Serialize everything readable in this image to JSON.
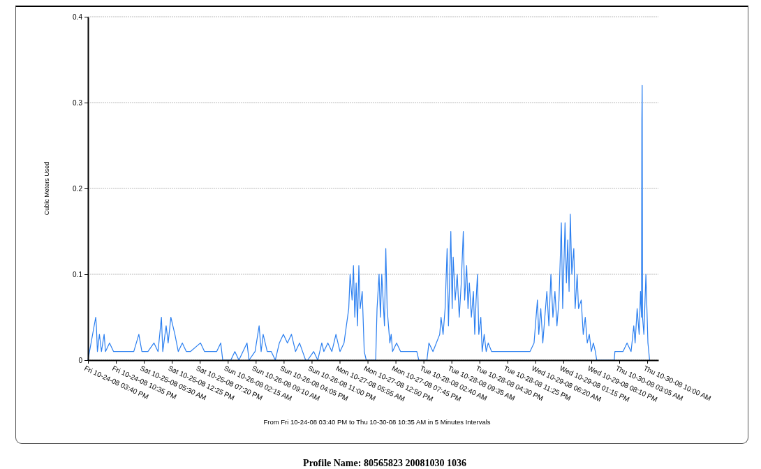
{
  "chart_data": {
    "type": "line",
    "title": "Profile Name: 80565823 20081030 1036",
    "xlabel": "From Fri 10-24-08 03:40 PM to Thu 10-30-08 10:35 AM in 5 Minutes Intervals",
    "ylabel": "Cubic Meters Used",
    "grid": "y",
    "marker": "none",
    "line_style": "solid",
    "xlim": [
      "2008-10-24T15:40",
      "2008-10-30T12:45"
    ],
    "ylim": [
      0,
      0.4
    ],
    "yticks": [
      0,
      0.1,
      0.2,
      0.3,
      0.4
    ],
    "xticks": [
      {
        "value": "2008-10-24T15:40",
        "label": "Fri 10-24-08 03:40 PM"
      },
      {
        "value": "2008-10-24T22:35",
        "label": "Fri 10-24-08 10:35 PM"
      },
      {
        "value": "2008-10-25T05:30",
        "label": "Sat 10-25-08 05:30 AM"
      },
      {
        "value": "2008-10-25T12:25",
        "label": "Sat 10-25-08 12:25 PM"
      },
      {
        "value": "2008-10-25T19:20",
        "label": "Sat 10-25-08 07:20 PM"
      },
      {
        "value": "2008-10-26T02:15",
        "label": "Sun 10-26-08 02:15 AM"
      },
      {
        "value": "2008-10-26T09:10",
        "label": "Sun 10-26-08 09:10 AM"
      },
      {
        "value": "2008-10-26T16:05",
        "label": "Sun 10-26-08 04:05 PM"
      },
      {
        "value": "2008-10-26T23:00",
        "label": "Sun 10-26-08 11:00 PM"
      },
      {
        "value": "2008-10-27T05:55",
        "label": "Mon 10-27-08 05:55 AM"
      },
      {
        "value": "2008-10-27T12:50",
        "label": "Mon 10-27-08 12:50 PM"
      },
      {
        "value": "2008-10-27T19:45",
        "label": "Mon 10-27-08 07:45 PM"
      },
      {
        "value": "2008-10-28T02:40",
        "label": "Tue 10-28-08 02:40 AM"
      },
      {
        "value": "2008-10-28T09:35",
        "label": "Tue 10-28-08 09:35 AM"
      },
      {
        "value": "2008-10-28T16:30",
        "label": "Tue 10-28-08 04:30 PM"
      },
      {
        "value": "2008-10-28T23:25",
        "label": "Tue 10-28-08 11:25 PM"
      },
      {
        "value": "2008-10-29T06:20",
        "label": "Wed 10-29-08 06:20 AM"
      },
      {
        "value": "2008-10-29T13:15",
        "label": "Wed 10-29-08 01:15 PM"
      },
      {
        "value": "2008-10-29T20:10",
        "label": "Wed 10-29-08 08:10 PM"
      },
      {
        "value": "2008-10-30T03:05",
        "label": "Thu 10-30-08 03:05 AM"
      },
      {
        "value": "2008-10-30T10:00",
        "label": "Thu 10-30-08 10:00 AM"
      }
    ],
    "x": [
      "2008-10-24T15:40",
      "2008-10-24T17:35",
      "2008-10-24T17:45",
      "2008-10-24T18:00",
      "2008-10-24T18:30",
      "2008-10-24T19:00",
      "2008-10-24T19:40",
      "2008-10-24T20:00",
      "2008-10-24T21:00",
      "2008-10-24T22:00",
      "2008-10-24T23:00",
      "2008-10-25T00:30",
      "2008-10-25T02:00",
      "2008-10-25T03:00",
      "2008-10-25T04:15",
      "2008-10-25T05:00",
      "2008-10-25T06:30",
      "2008-10-25T08:00",
      "2008-10-25T09:00",
      "2008-10-25T09:50",
      "2008-10-25T10:10",
      "2008-10-25T11:00",
      "2008-10-25T11:30",
      "2008-10-25T12:10",
      "2008-10-25T12:40",
      "2008-10-25T13:10",
      "2008-10-25T14:00",
      "2008-10-25T15:00",
      "2008-10-25T16:00",
      "2008-10-25T17:00",
      "2008-10-25T19:30",
      "2008-10-25T20:30",
      "2008-10-25T22:00",
      "2008-10-25T23:30",
      "2008-10-26T00:30",
      "2008-10-26T01:00",
      "2008-10-26T03:00",
      "2008-10-26T04:00",
      "2008-10-26T05:00",
      "2008-10-26T07:00",
      "2008-10-26T07:30",
      "2008-10-26T09:00",
      "2008-10-26T10:00",
      "2008-10-26T10:30",
      "2008-10-26T11:00",
      "2008-10-26T12:00",
      "2008-10-26T13:00",
      "2008-10-26T14:00",
      "2008-10-26T15:00",
      "2008-10-26T16:00",
      "2008-10-26T17:00",
      "2008-10-26T18:00",
      "2008-10-26T19:00",
      "2008-10-26T20:00",
      "2008-10-26T21:30",
      "2008-10-26T22:00",
      "2008-10-26T23:30",
      "2008-10-27T00:30",
      "2008-10-27T01:30",
      "2008-10-27T02:00",
      "2008-10-27T03:00",
      "2008-10-27T04:00",
      "2008-10-27T05:00",
      "2008-10-27T06:00",
      "2008-10-27T07:00",
      "2008-10-27T08:10",
      "2008-10-27T08:30",
      "2008-10-27T09:00",
      "2008-10-27T09:20",
      "2008-10-27T09:40",
      "2008-10-27T10:00",
      "2008-10-27T10:20",
      "2008-10-27T10:40",
      "2008-10-27T11:00",
      "2008-10-27T11:30",
      "2008-10-27T12:00",
      "2008-10-27T12:30",
      "2008-10-27T14:50",
      "2008-10-27T15:10",
      "2008-10-27T15:40",
      "2008-10-27T16:00",
      "2008-10-27T16:20",
      "2008-10-27T16:40",
      "2008-10-27T17:00",
      "2008-10-27T17:20",
      "2008-10-27T17:40",
      "2008-10-27T18:00",
      "2008-10-27T18:20",
      "2008-10-27T18:40",
      "2008-10-27T19:00",
      "2008-10-27T20:00",
      "2008-10-27T21:00",
      "2008-10-27T22:00",
      "2008-10-27T23:00",
      "2008-10-28T00:00",
      "2008-10-28T01:00",
      "2008-10-28T01:30",
      "2008-10-28T03:30",
      "2008-10-28T04:00",
      "2008-10-28T05:00",
      "2008-10-28T06:40",
      "2008-10-28T07:00",
      "2008-10-28T07:30",
      "2008-10-28T08:00",
      "2008-10-28T08:30",
      "2008-10-28T08:50",
      "2008-10-28T09:25",
      "2008-10-28T09:45",
      "2008-10-28T10:00",
      "2008-10-28T10:30",
      "2008-10-28T11:00",
      "2008-10-28T11:30",
      "2008-10-28T12:00",
      "2008-10-28T12:30",
      "2008-10-28T12:50",
      "2008-10-28T13:20",
      "2008-10-28T13:40",
      "2008-10-28T14:00",
      "2008-10-28T14:30",
      "2008-10-28T15:00",
      "2008-10-28T15:20",
      "2008-10-28T15:40",
      "2008-10-28T16:00",
      "2008-10-28T16:20",
      "2008-10-28T16:50",
      "2008-10-28T17:10",
      "2008-10-28T17:40",
      "2008-10-28T18:10",
      "2008-10-28T18:40",
      "2008-10-28T19:30",
      "2008-10-28T21:00",
      "2008-10-28T23:00",
      "2008-10-29T01:00",
      "2008-10-29T03:00",
      "2008-10-29T05:00",
      "2008-10-29T06:00",
      "2008-10-29T06:50",
      "2008-10-29T07:10",
      "2008-10-29T07:40",
      "2008-10-29T08:10",
      "2008-10-29T08:40",
      "2008-10-29T09:10",
      "2008-10-29T09:40",
      "2008-10-29T10:10",
      "2008-10-29T10:40",
      "2008-10-29T11:10",
      "2008-10-29T11:40",
      "2008-10-29T12:10",
      "2008-10-29T12:45",
      "2008-10-29T13:05",
      "2008-10-29T13:40",
      "2008-10-29T14:00",
      "2008-10-29T14:20",
      "2008-10-29T14:40",
      "2008-10-29T14:58",
      "2008-10-29T15:20",
      "2008-10-29T15:50",
      "2008-10-29T16:10",
      "2008-10-29T16:40",
      "2008-10-29T17:00",
      "2008-10-29T17:40",
      "2008-10-29T18:10",
      "2008-10-29T18:40",
      "2008-10-29T19:10",
      "2008-10-29T19:40",
      "2008-10-29T20:10",
      "2008-10-29T20:40",
      "2008-10-29T21:10",
      "2008-10-29T21:30",
      "2008-10-30T01:50",
      "2008-10-30T02:00",
      "2008-10-30T04:00",
      "2008-10-30T05:00",
      "2008-10-30T06:00",
      "2008-10-30T06:40",
      "2008-10-30T07:00",
      "2008-10-30T07:30",
      "2008-10-30T08:00",
      "2008-10-30T08:20",
      "2008-10-30T08:35",
      "2008-10-30T08:40",
      "2008-10-30T08:45",
      "2008-10-30T08:50",
      "2008-10-30T09:10",
      "2008-10-30T09:40",
      "2008-10-30T09:55",
      "2008-10-30T10:10",
      "2008-10-30T10:35"
    ],
    "series": [
      {
        "color": "#2b7ff0",
        "values": [
          0,
          0.05,
          0.04,
          0.01,
          0.03,
          0.01,
          0.03,
          0.01,
          0.02,
          0.01,
          0.01,
          0.01,
          0.01,
          0.01,
          0.03,
          0.01,
          0.01,
          0.02,
          0.01,
          0.05,
          0.01,
          0.04,
          0.02,
          0.05,
          0.04,
          0.03,
          0.01,
          0.02,
          0.01,
          0.01,
          0.02,
          0.01,
          0.01,
          0.01,
          0.02,
          0,
          0,
          0.01,
          0,
          0.02,
          0,
          0.01,
          0.04,
          0.01,
          0.03,
          0.01,
          0.01,
          0,
          0.02,
          0.03,
          0.02,
          0.03,
          0.01,
          0.02,
          0,
          0,
          0.01,
          0,
          0.02,
          0.01,
          0.02,
          0.01,
          0.03,
          0.01,
          0.02,
          0.06,
          0.1,
          0.07,
          0.11,
          0.05,
          0.09,
          0.04,
          0.11,
          0.06,
          0.08,
          0.01,
          0,
          0,
          0.06,
          0.1,
          0.05,
          0.1,
          0.07,
          0.04,
          0.13,
          0.06,
          0.04,
          0.02,
          0.03,
          0.01,
          0.02,
          0.01,
          0.01,
          0.01,
          0.01,
          0.01,
          0,
          0,
          0.02,
          0.01,
          0.03,
          0.05,
          0.03,
          0.06,
          0.13,
          0.04,
          0.15,
          0.06,
          0.12,
          0.07,
          0.1,
          0.05,
          0.09,
          0.15,
          0.07,
          0.11,
          0.06,
          0.09,
          0.05,
          0.08,
          0.03,
          0.07,
          0.1,
          0.03,
          0.05,
          0.01,
          0.03,
          0.01,
          0.02,
          0.01,
          0.01,
          0.01,
          0.01,
          0.01,
          0.01,
          0.02,
          0.07,
          0.03,
          0.06,
          0.02,
          0.05,
          0.08,
          0.04,
          0.1,
          0.05,
          0.08,
          0.04,
          0.07,
          0.16,
          0.06,
          0.16,
          0.09,
          0.14,
          0.08,
          0.17,
          0.1,
          0.13,
          0.06,
          0.1,
          0.06,
          0.07,
          0.03,
          0.05,
          0.02,
          0.03,
          0.01,
          0.02,
          0.01,
          0,
          0,
          0.01,
          0.01,
          0.02,
          0.01,
          0.04,
          0.02,
          0.06,
          0.03,
          0.08,
          0.05,
          0.28,
          0.32,
          0.05,
          0.03,
          0.1,
          0.06,
          0.02,
          0
        ]
      }
    ]
  }
}
